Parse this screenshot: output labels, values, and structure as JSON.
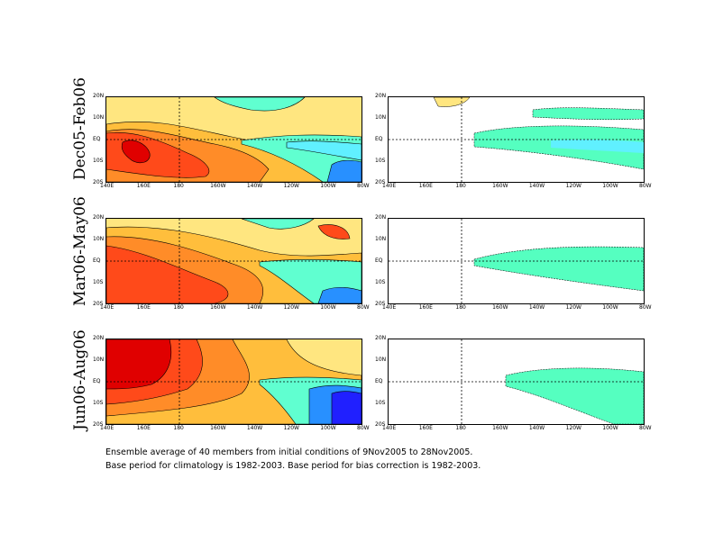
{
  "chart_data": {
    "type": "heatmap",
    "rows": [
      {
        "label": "Dec05-Feb06"
      },
      {
        "label": "Mar06-May06"
      },
      {
        "label": "Jun06-Aug06"
      }
    ],
    "x_ticks": [
      "140E",
      "160E",
      "180",
      "160W",
      "140W",
      "120W",
      "100W",
      "80W"
    ],
    "y_ticks": [
      "20N",
      "10N",
      "EQ",
      "10S",
      "20S"
    ],
    "x_range": [
      "140E",
      "80W"
    ],
    "y_range": [
      "20S",
      "20N"
    ],
    "reference_lines": [
      "EQ",
      "180"
    ],
    "colors": {
      "deep_red": "#e00000",
      "red_orange": "#ff4a1a",
      "orange": "#ff8c28",
      "light_orange": "#ffbe3c",
      "yellow": "#ffe680",
      "pale_yellow": "#fff6b0",
      "aqua": "#60ffd0",
      "teal": "#30e8c0",
      "cyan": "#60f0ff",
      "blue": "#2890ff",
      "dark_blue": "#2020ff",
      "violet": "#8000ff",
      "signif_green": "#55ffc0"
    }
  },
  "caption": {
    "line1": "Ensemble average of 40 members from initial conditions of 9Nov2005 to 28Nov2005.",
    "line2": "Base period for climatology is 1982-2003. Base period for bias correction is 1982-2003."
  }
}
